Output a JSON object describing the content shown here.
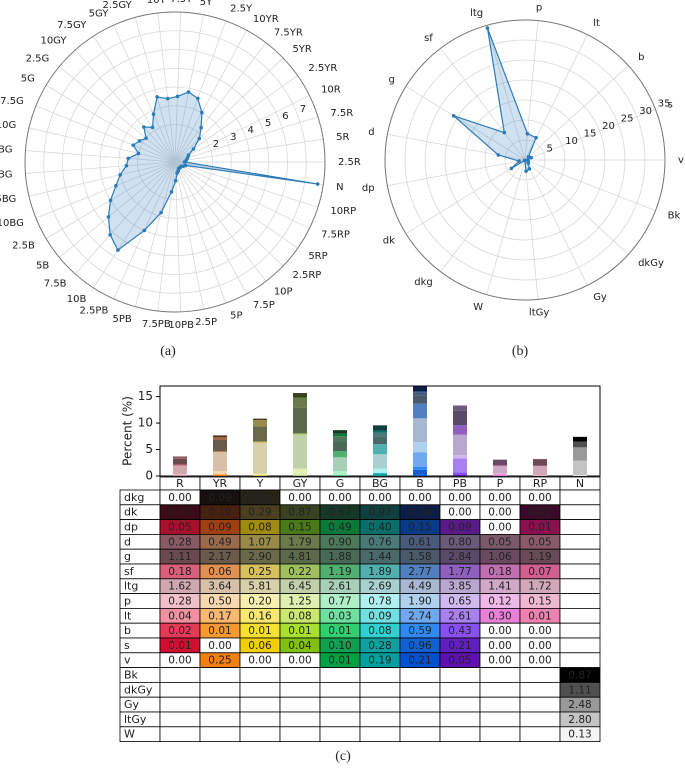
{
  "chart_data": [
    {
      "type": "radar",
      "categories": [
        "2.5R",
        "5R",
        "7.5R",
        "10R",
        "2.5YR",
        "5YR",
        "7.5YR",
        "10YR",
        "2.5Y",
        "5Y",
        "7.5Y",
        "10Y",
        "2.5GY",
        "5GY",
        "7.5GY",
        "10GY",
        "2.5G",
        "5G",
        "7.5G",
        "10G",
        "2.5BG",
        "5BG",
        "7.5BG",
        "10BG",
        "2.5B",
        "5B",
        "7.5B",
        "10B",
        "2.5PB",
        "5PB",
        "7.5PB",
        "10PB",
        "2.5P",
        "5P",
        "7.5P",
        "10P",
        "2.5RP",
        "5RP",
        "7.5RP",
        "10RP",
        "N"
      ],
      "values": [
        0.5,
        0.6,
        0.7,
        0.8,
        1.2,
        1.8,
        2.3,
        3.0,
        3.6,
        3.8,
        3.5,
        3.4,
        3.6,
        2.8,
        2.2,
        2.5,
        2.0,
        2.2,
        2.4,
        2.0,
        2.5,
        2.6,
        3.0,
        3.4,
        4.0,
        4.6,
        5.2,
        5.6,
        4.0,
        2.8,
        1.6,
        1.0,
        0.6,
        0.5,
        0.4,
        0.4,
        0.4,
        0.4,
        0.5,
        0.6,
        7.7
      ],
      "color": "#2b7bb9",
      "ylim": [
        0,
        8
      ],
      "yticks": [
        2,
        3,
        4,
        5,
        6,
        7
      ],
      "grid": true
    },
    {
      "type": "radar",
      "categories": [
        "v",
        "s",
        "b",
        "lt",
        "p",
        "ltg",
        "sf",
        "g",
        "d",
        "dp",
        "dk",
        "dkg",
        "W",
        "ltGy",
        "Gy",
        "dkGy",
        "Bk"
      ],
      "values": [
        0.71,
        1.66,
        1.16,
        6.23,
        6.6,
        34.29,
        8.58,
        20.98,
        6.8,
        1.51,
        4.02,
        0.12,
        0.13,
        2.8,
        2.48,
        1.11,
        0.87
      ],
      "color": "#2b7bb9",
      "ylim": [
        0,
        35
      ],
      "yticks": [
        5,
        10,
        15,
        20,
        25,
        30,
        35
      ],
      "grid": true
    },
    {
      "type": "stacked-bar-table",
      "ylabel": "Percent (%)",
      "categories": [
        "R",
        "YR",
        "Y",
        "GY",
        "G",
        "BG",
        "B",
        "PB",
        "P",
        "RP",
        "N"
      ],
      "ylim": [
        0,
        17
      ],
      "yticks": [
        0,
        5,
        10,
        15
      ],
      "series": [
        {
          "name": "dkg",
          "values": [
            0,
            0.09,
            0.03,
            0,
            0,
            0,
            0,
            0,
            0,
            0,
            null
          ],
          "value_labels": [
            "0.00",
            "0.09",
            "0.03",
            "0.00",
            "0.00",
            "0.00",
            "0.00",
            "0.00",
            "0.00",
            "0.00",
            null
          ],
          "colors": [
            "#ffffff",
            "#161010",
            "#262418",
            "#ffffff",
            "#ffffff",
            "#ffffff",
            "#ffffff",
            "#ffffff",
            "#ffffff",
            "#ffffff",
            null
          ]
        },
        {
          "name": "dk",
          "values": [
            0.07,
            0.19,
            0.29,
            0.87,
            0.67,
            0.97,
            0.94,
            0,
            0,
            0.02,
            null
          ],
          "value_labels": [
            "0.07",
            "0.19",
            "0.29",
            "0.87",
            "0.67",
            "0.97",
            "0.94",
            "0.00",
            "0.00",
            "0.02",
            null
          ],
          "colors": [
            "#3c0a18",
            "#4a2010",
            "#4a4020",
            "#3a4220",
            "#163826",
            "#10403e",
            "#0c1e48",
            "#ffffff",
            "#ffffff",
            "#3a0a28",
            null
          ]
        },
        {
          "name": "dp",
          "values": [
            0.05,
            0.09,
            0.08,
            0.15,
            0.49,
            0.4,
            0.15,
            0.09,
            0,
            0.01,
            null
          ],
          "value_labels": [
            "0.05",
            "0.09",
            "0.08",
            "0.15",
            "0.49",
            "0.40",
            "0.15",
            "0.09",
            "0.00",
            "0.01",
            null
          ],
          "colors": [
            "#a8102c",
            "#a04010",
            "#a08a10",
            "#4a7a18",
            "#0a7a3a",
            "#0a6e6a",
            "#0a3a8a",
            "#5a1a8a",
            "#ffffff",
            "#8a1050",
            null
          ]
        },
        {
          "name": "d",
          "values": [
            0.28,
            0.49,
            1.07,
            1.79,
            0.9,
            0.76,
            0.61,
            0.8,
            0.05,
            0.05,
            null
          ],
          "value_labels": [
            "0.28",
            "0.49",
            "1.07",
            "1.79",
            "0.90",
            "0.76",
            "0.61",
            "0.80",
            "0.05",
            "0.05",
            null
          ],
          "colors": [
            "#8a5a64",
            "#9a6a4a",
            "#9a8a4a",
            "#6a7a4a",
            "#4a7a5a",
            "#4a7a78",
            "#4a5a7a",
            "#6a5a7a",
            "#7a5a6a",
            "#8a5a6a",
            null
          ]
        },
        {
          "name": "g",
          "values": [
            1.11,
            2.17,
            2.9,
            4.81,
            1.88,
            1.44,
            1.58,
            2.84,
            1.06,
            1.19,
            null
          ],
          "value_labels": [
            "1.11",
            "2.17",
            "2.90",
            "4.81",
            "1.88",
            "1.44",
            "1.58",
            "2.84",
            "1.06",
            "1.19",
            null
          ],
          "colors": [
            "#6a4a50",
            "#6a5a4a",
            "#6a6a4a",
            "#5a6a4a",
            "#4a6a58",
            "#4a6a6a",
            "#4a5a6a",
            "#5a4a6a",
            "#6a4a60",
            "#6a4a56",
            null
          ]
        },
        {
          "name": "sf",
          "values": [
            0.18,
            0.06,
            0.25,
            0.22,
            1.19,
            1.89,
            2.77,
            1.77,
            0.18,
            0.07,
            null
          ],
          "value_labels": [
            "0.18",
            "0.06",
            "0.25",
            "0.22",
            "1.19",
            "1.89",
            "2.77",
            "1.77",
            "0.18",
            "0.07",
            null
          ],
          "colors": [
            "#d8607a",
            "#e09050",
            "#d8c060",
            "#a0c060",
            "#50b070",
            "#50b0b0",
            "#5080c0",
            "#9060c0",
            "#c070b0",
            "#d06090",
            null
          ]
        },
        {
          "name": "ltg",
          "values": [
            1.62,
            3.64,
            5.81,
            6.45,
            2.61,
            2.69,
            4.49,
            3.85,
            1.41,
            1.72,
            null
          ],
          "value_labels": [
            "1.62",
            "3.64",
            "5.81",
            "6.45",
            "2.61",
            "2.69",
            "4.49",
            "3.85",
            "1.41",
            "1.72",
            null
          ],
          "colors": [
            "#d0a8b0",
            "#d8c0a8",
            "#d8d0a8",
            "#c0d0a8",
            "#a8d0b8",
            "#a8d0d0",
            "#a8b8d0",
            "#b8a8d0",
            "#d0a8c8",
            "#d0a8b8",
            null
          ]
        },
        {
          "name": "p",
          "values": [
            0.28,
            0.5,
            0.2,
            1.25,
            0.77,
            0.78,
            1.9,
            0.65,
            0.12,
            0.15,
            null
          ],
          "value_labels": [
            "0.28",
            "0.50",
            "0.20",
            "1.25",
            "0.77",
            "0.78",
            "1.90",
            "0.65",
            "0.12",
            "0.15",
            null
          ],
          "colors": [
            "#f0c0c8",
            "#f8d8b0",
            "#f8f0b0",
            "#e0f0b0",
            "#b0f0c8",
            "#b0f0f0",
            "#b0d0f0",
            "#d0b8f0",
            "#f0b8e8",
            "#f0b8d0",
            null
          ]
        },
        {
          "name": "lt",
          "values": [
            0.04,
            0.17,
            0.16,
            0.08,
            0.03,
            0.09,
            2.74,
            2.61,
            0.3,
            0.01,
            null
          ],
          "value_labels": [
            "0.04",
            "0.17",
            "0.16",
            "0.08",
            "0.03",
            "0.09",
            "2.74",
            "2.61",
            "0.30",
            "0.01",
            null
          ],
          "colors": [
            "#f090a0",
            "#f8b870",
            "#f8e870",
            "#c8e870",
            "#70e0a0",
            "#70e0e0",
            "#70a8f0",
            "#a880f0",
            "#e880d8",
            "#f080b0",
            null
          ]
        },
        {
          "name": "b",
          "values": [
            0.02,
            0.01,
            0.01,
            0.01,
            0.01,
            0.08,
            0.59,
            0.43,
            0,
            0,
            null
          ],
          "value_labels": [
            "0.02",
            "0.01",
            "0.01",
            "0.01",
            "0.01",
            "0.08",
            "0.59",
            "0.43",
            "0.00",
            "0.00",
            null
          ],
          "colors": [
            "#e83858",
            "#f89830",
            "#f8e030",
            "#a8e030",
            "#30d070",
            "#30d0d0",
            "#3088f0",
            "#8850f0",
            "#ffffff",
            "#ffffff",
            null
          ]
        },
        {
          "name": "s",
          "values": [
            0.01,
            0,
            0.06,
            0.04,
            0.1,
            0.28,
            0.96,
            0.21,
            0,
            0,
            null
          ],
          "value_labels": [
            "0.01",
            "0.00",
            "0.06",
            "0.04",
            "0.10",
            "0.28",
            "0.96",
            "0.21",
            "0.00",
            "0.00",
            null
          ],
          "colors": [
            "#d01030",
            "#ffffff",
            "#f0d000",
            "#80c010",
            "#10a050",
            "#10a0a0",
            "#1060d0",
            "#6020c0",
            "#ffffff",
            "#ffffff",
            null
          ]
        },
        {
          "name": "v",
          "values": [
            0,
            0.25,
            0,
            0,
            0.01,
            0.19,
            0.21,
            0.05,
            0,
            0,
            null
          ],
          "value_labels": [
            "0.00",
            "0.25",
            "0.00",
            "0.00",
            "0.01",
            "0.19",
            "0.21",
            "0.05",
            "0.00",
            "0.00",
            null
          ],
          "colors": [
            "#ffffff",
            "#f08010",
            "#ffffff",
            "#ffffff",
            "#00a040",
            "#00a0a0",
            "#0050d0",
            "#6010b0",
            "#ffffff",
            "#ffffff",
            null
          ]
        },
        {
          "name": "Bk",
          "values": [
            null,
            null,
            null,
            null,
            null,
            null,
            null,
            null,
            null,
            null,
            0.87
          ],
          "value_labels": [
            null,
            null,
            null,
            null,
            null,
            null,
            null,
            null,
            null,
            null,
            "0.87"
          ],
          "colors": [
            null,
            null,
            null,
            null,
            null,
            null,
            null,
            null,
            null,
            null,
            "#000000"
          ]
        },
        {
          "name": "dkGy",
          "values": [
            null,
            null,
            null,
            null,
            null,
            null,
            null,
            null,
            null,
            null,
            1.11
          ],
          "value_labels": [
            null,
            null,
            null,
            null,
            null,
            null,
            null,
            null,
            null,
            null,
            "1.11"
          ],
          "colors": [
            null,
            null,
            null,
            null,
            null,
            null,
            null,
            null,
            null,
            null,
            "#505050"
          ]
        },
        {
          "name": "Gy",
          "values": [
            null,
            null,
            null,
            null,
            null,
            null,
            null,
            null,
            null,
            null,
            2.48
          ],
          "value_labels": [
            null,
            null,
            null,
            null,
            null,
            null,
            null,
            null,
            null,
            null,
            "2.48"
          ],
          "colors": [
            null,
            null,
            null,
            null,
            null,
            null,
            null,
            null,
            null,
            null,
            "#999999"
          ]
        },
        {
          "name": "ltGy",
          "values": [
            null,
            null,
            null,
            null,
            null,
            null,
            null,
            null,
            null,
            null,
            2.8
          ],
          "value_labels": [
            null,
            null,
            null,
            null,
            null,
            null,
            null,
            null,
            null,
            null,
            "2.80"
          ],
          "colors": [
            null,
            null,
            null,
            null,
            null,
            null,
            null,
            null,
            null,
            null,
            "#c4c4c4"
          ]
        },
        {
          "name": "W",
          "values": [
            null,
            null,
            null,
            null,
            null,
            null,
            null,
            null,
            null,
            null,
            0.13
          ],
          "value_labels": [
            null,
            null,
            null,
            null,
            null,
            null,
            null,
            null,
            null,
            null,
            "0.13"
          ],
          "colors": [
            null,
            null,
            null,
            null,
            null,
            null,
            null,
            null,
            null,
            null,
            "#f4f4f4"
          ]
        }
      ]
    }
  ],
  "captions": [
    "(a)",
    "(b)",
    "(c)"
  ]
}
